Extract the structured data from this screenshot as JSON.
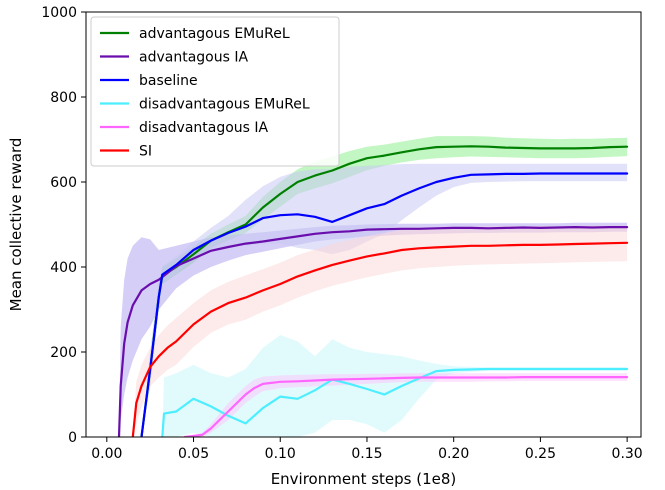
{
  "chart_data": {
    "type": "line",
    "xlabel": "Environment steps (1e8)",
    "ylabel": "Mean collective reward",
    "xlim": [
      -0.012,
      0.308
    ],
    "ylim": [
      0,
      1000
    ],
    "xticks": [
      0.0,
      0.05,
      0.1,
      0.15,
      0.2,
      0.25,
      0.3
    ],
    "xtick_labels": [
      "0.00",
      "0.05",
      "0.10",
      "0.15",
      "0.20",
      "0.25",
      "0.30"
    ],
    "yticks": [
      0,
      200,
      400,
      600,
      800,
      1000
    ],
    "ytick_labels": [
      "0",
      "200",
      "400",
      "600",
      "800",
      "1000"
    ],
    "grid": false,
    "legend_position": "top-left",
    "series": [
      {
        "name": "advantagous EMuReL",
        "color": "#008000",
        "band_color": "#90ee90",
        "x": [
          0.02,
          0.025,
          0.03,
          0.032,
          0.04,
          0.05,
          0.06,
          0.07,
          0.08,
          0.09,
          0.1,
          0.11,
          0.12,
          0.13,
          0.14,
          0.15,
          0.16,
          0.17,
          0.18,
          0.19,
          0.2,
          0.21,
          0.22,
          0.23,
          0.24,
          0.25,
          0.26,
          0.27,
          0.28,
          0.29,
          0.3
        ],
        "y": [
          0,
          160,
          330,
          380,
          400,
          430,
          462,
          482,
          500,
          540,
          572,
          600,
          615,
          627,
          643,
          656,
          662,
          670,
          677,
          682,
          683,
          684,
          683,
          681,
          680,
          679,
          679,
          679,
          680,
          682,
          683
        ],
        "upper": [
          0,
          200,
          360,
          400,
          420,
          448,
          478,
          500,
          520,
          565,
          600,
          630,
          648,
          660,
          673,
          683,
          688,
          695,
          702,
          708,
          708,
          708,
          707,
          704,
          703,
          702,
          701,
          702,
          702,
          703,
          704
        ],
        "lower": [
          0,
          120,
          300,
          360,
          382,
          410,
          445,
          462,
          480,
          512,
          542,
          572,
          585,
          597,
          612,
          628,
          638,
          646,
          652,
          656,
          658,
          660,
          659,
          658,
          657,
          656,
          656,
          656,
          657,
          659,
          661
        ]
      },
      {
        "name": "advantagous IA",
        "color": "#6a0dad",
        "band_color": "#b3a6f0",
        "x": [
          0.007,
          0.008,
          0.01,
          0.012,
          0.015,
          0.02,
          0.025,
          0.03,
          0.04,
          0.05,
          0.06,
          0.07,
          0.08,
          0.09,
          0.1,
          0.11,
          0.12,
          0.13,
          0.14,
          0.15,
          0.16,
          0.17,
          0.18,
          0.19,
          0.2,
          0.21,
          0.22,
          0.23,
          0.24,
          0.25,
          0.26,
          0.27,
          0.28,
          0.29,
          0.3
        ],
        "y": [
          0,
          120,
          220,
          270,
          310,
          345,
          360,
          370,
          402,
          420,
          438,
          447,
          455,
          460,
          466,
          472,
          478,
          482,
          484,
          488,
          489,
          490,
          490,
          491,
          492,
          492,
          491,
          492,
          493,
          492,
          493,
          494,
          493,
          494,
          494
        ],
        "upper": [
          0,
          260,
          370,
          420,
          450,
          470,
          465,
          440,
          450,
          460,
          470,
          475,
          478,
          482,
          486,
          490,
          494,
          497,
          498,
          500,
          501,
          502,
          502,
          502,
          503,
          503,
          503,
          503,
          503,
          503,
          503,
          504,
          504,
          504,
          504
        ],
        "lower": [
          0,
          40,
          100,
          140,
          180,
          230,
          260,
          300,
          350,
          380,
          400,
          415,
          428,
          436,
          444,
          452,
          460,
          465,
          468,
          472,
          474,
          476,
          477,
          478,
          479,
          480,
          480,
          481,
          481,
          481,
          482,
          482,
          482,
          483,
          483
        ]
      },
      {
        "name": "baseline",
        "color": "#0000ff",
        "band_color": "#c8c8f4",
        "x": [
          0.02,
          0.025,
          0.03,
          0.032,
          0.04,
          0.05,
          0.06,
          0.07,
          0.08,
          0.09,
          0.1,
          0.11,
          0.12,
          0.13,
          0.14,
          0.15,
          0.16,
          0.17,
          0.18,
          0.19,
          0.2,
          0.21,
          0.22,
          0.23,
          0.24,
          0.25,
          0.26,
          0.27,
          0.28,
          0.29,
          0.3
        ],
        "y": [
          0,
          160,
          330,
          382,
          405,
          440,
          462,
          480,
          495,
          515,
          522,
          524,
          518,
          506,
          522,
          538,
          548,
          568,
          585,
          600,
          610,
          617,
          618,
          619,
          619,
          620,
          620,
          620,
          620,
          620,
          620
        ],
        "upper": [
          0,
          200,
          360,
          402,
          425,
          460,
          492,
          520,
          558,
          590,
          612,
          625,
          630,
          630,
          636,
          638,
          640,
          642,
          643,
          643,
          643,
          643,
          643,
          643,
          643,
          643,
          643,
          643,
          643,
          643,
          643
        ],
        "lower": [
          0,
          120,
          300,
          362,
          385,
          420,
          440,
          450,
          450,
          455,
          455,
          445,
          440,
          430,
          440,
          460,
          478,
          510,
          540,
          568,
          588,
          598,
          600,
          601,
          602,
          602,
          602,
          602,
          602,
          602,
          602
        ]
      },
      {
        "name": "disadvantagous EMuReL",
        "color": "#4deeff",
        "band_color": "#c8f8fc",
        "x": [
          0.032,
          0.033,
          0.04,
          0.05,
          0.06,
          0.07,
          0.08,
          0.09,
          0.1,
          0.11,
          0.12,
          0.13,
          0.14,
          0.15,
          0.16,
          0.17,
          0.18,
          0.19,
          0.2,
          0.22,
          0.24,
          0.26,
          0.28,
          0.3
        ],
        "y": [
          0,
          55,
          60,
          90,
          72,
          50,
          32,
          68,
          95,
          90,
          110,
          135,
          125,
          113,
          100,
          120,
          138,
          155,
          158,
          160,
          160,
          160,
          160,
          160
        ],
        "upper": [
          0,
          140,
          150,
          170,
          150,
          140,
          160,
          210,
          240,
          225,
          190,
          230,
          210,
          200,
          195,
          190,
          180,
          172,
          166,
          164,
          164,
          164,
          164,
          164
        ],
        "lower": [
          0,
          0,
          0,
          10,
          0,
          0,
          0,
          0,
          0,
          0,
          10,
          40,
          40,
          30,
          10,
          40,
          90,
          135,
          150,
          156,
          156,
          156,
          156,
          156
        ]
      },
      {
        "name": "disadvantagous IA",
        "color": "#ff66ff",
        "band_color": "#fbc8fb",
        "x": [
          0.045,
          0.055,
          0.06,
          0.065,
          0.07,
          0.075,
          0.08,
          0.085,
          0.09,
          0.1,
          0.11,
          0.12,
          0.13,
          0.14,
          0.15,
          0.16,
          0.17,
          0.18,
          0.19,
          0.2,
          0.21,
          0.22,
          0.23,
          0.24,
          0.25,
          0.26,
          0.27,
          0.28,
          0.29,
          0.3
        ],
        "y": [
          0,
          5,
          20,
          40,
          60,
          80,
          100,
          115,
          125,
          130,
          131,
          133,
          135,
          136,
          137,
          138,
          139,
          140,
          140,
          140,
          140,
          140,
          140,
          141,
          141,
          141,
          141,
          141,
          141,
          141
        ],
        "upper": [
          0,
          10,
          30,
          55,
          80,
          100,
          120,
          135,
          142,
          145,
          146,
          147,
          148,
          148,
          149,
          149,
          150,
          150,
          150,
          150,
          150,
          150,
          150,
          150,
          150,
          150,
          150,
          150,
          150,
          150
        ],
        "lower": [
          0,
          0,
          10,
          25,
          40,
          60,
          80,
          95,
          108,
          115,
          117,
          119,
          121,
          123,
          125,
          127,
          129,
          130,
          130,
          130,
          130,
          131,
          131,
          132,
          132,
          132,
          132,
          132,
          132,
          132
        ]
      },
      {
        "name": "SI",
        "color": "#ff0000",
        "band_color": "#fcd8d8",
        "x": [
          0.015,
          0.017,
          0.02,
          0.025,
          0.03,
          0.035,
          0.04,
          0.05,
          0.06,
          0.07,
          0.08,
          0.09,
          0.1,
          0.11,
          0.12,
          0.13,
          0.14,
          0.15,
          0.16,
          0.17,
          0.18,
          0.19,
          0.2,
          0.21,
          0.22,
          0.23,
          0.24,
          0.25,
          0.26,
          0.27,
          0.28,
          0.29,
          0.3
        ],
        "y": [
          0,
          80,
          120,
          165,
          190,
          210,
          225,
          265,
          295,
          315,
          328,
          345,
          360,
          378,
          392,
          405,
          415,
          425,
          432,
          440,
          444,
          446,
          448,
          450,
          450,
          451,
          452,
          452,
          453,
          454,
          455,
          456,
          457
        ],
        "upper": [
          0,
          130,
          170,
          210,
          240,
          262,
          280,
          315,
          345,
          365,
          380,
          395,
          410,
          428,
          441,
          454,
          464,
          473,
          480,
          487,
          490,
          492,
          494,
          495,
          495,
          496,
          496,
          496,
          496,
          497,
          497,
          497,
          497
        ],
        "lower": [
          0,
          30,
          70,
          120,
          140,
          158,
          170,
          212,
          245,
          265,
          276,
          295,
          310,
          328,
          343,
          356,
          366,
          376,
          384,
          392,
          397,
          400,
          403,
          405,
          406,
          407,
          408,
          409,
          410,
          411,
          412,
          413,
          414
        ]
      }
    ]
  }
}
